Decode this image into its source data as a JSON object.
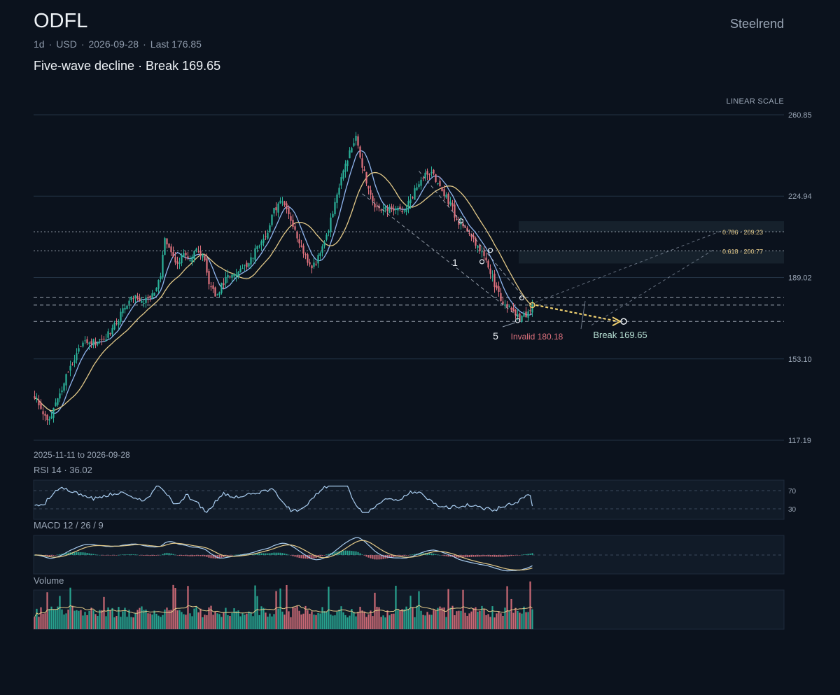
{
  "header": {
    "ticker": "ODFL",
    "brand": "Steelrend",
    "interval": "1d",
    "currency": "USD",
    "date": "2026-09-28",
    "last_label": "Last 176.85",
    "headline": "Five-wave decline · Break 169.65",
    "scale": "LINEAR SCALE",
    "range": "2025-11-11 to 2026-09-28"
  },
  "panes": {
    "rsi_label": "RSI 14 · 36.02",
    "macd_label": "MACD 12 / 26 / 9",
    "volume_label": "Volume"
  },
  "colors": {
    "background": "#0b121d",
    "up": "#2bb39a",
    "down": "#e0727e",
    "ma_fast": "#8fb5ee",
    "ma_slow": "#e3c988",
    "rsi": "#a9cdf0",
    "macd_signal": "#e3c988",
    "projection": "#f0d070"
  },
  "chart_data": {
    "type": "candlestick",
    "y_axis": {
      "min": 117.19,
      "max": 260.85,
      "ticks": [
        "260.85",
        "224.94",
        "189.02",
        "153.10",
        "117.19"
      ]
    },
    "anchors": [
      [
        0,
        137
      ],
      [
        3,
        132
      ],
      [
        6,
        126
      ],
      [
        9,
        130
      ],
      [
        12,
        138
      ],
      [
        15,
        145
      ],
      [
        18,
        152
      ],
      [
        21,
        157
      ],
      [
        24,
        160
      ],
      [
        27,
        160
      ],
      [
        30,
        161
      ],
      [
        33,
        162
      ],
      [
        36,
        165
      ],
      [
        40,
        171
      ],
      [
        44,
        177
      ],
      [
        48,
        181
      ],
      [
        52,
        179
      ],
      [
        56,
        181
      ],
      [
        60,
        190
      ],
      [
        62,
        205
      ],
      [
        65,
        201
      ],
      [
        68,
        194
      ],
      [
        71,
        199
      ],
      [
        74,
        197
      ],
      [
        77,
        202
      ],
      [
        80,
        199
      ],
      [
        83,
        187
      ],
      [
        86,
        181
      ],
      [
        90,
        187
      ],
      [
        94,
        191
      ],
      [
        98,
        193
      ],
      [
        102,
        195
      ],
      [
        106,
        203
      ],
      [
        110,
        207
      ],
      [
        114,
        219
      ],
      [
        118,
        224
      ],
      [
        121,
        216
      ],
      [
        124,
        210
      ],
      [
        127,
        202
      ],
      [
        130,
        196
      ],
      [
        133,
        194
      ],
      [
        136,
        201
      ],
      [
        139,
        208
      ],
      [
        142,
        217
      ],
      [
        146,
        232
      ],
      [
        150,
        245
      ],
      [
        153,
        252
      ],
      [
        156,
        238
      ],
      [
        159,
        228
      ],
      [
        162,
        221
      ],
      [
        165,
        220
      ],
      [
        168,
        219
      ],
      [
        171,
        220
      ],
      [
        174,
        218
      ],
      [
        177,
        220
      ],
      [
        180,
        225
      ],
      [
        183,
        231
      ],
      [
        186,
        234
      ],
      [
        189,
        235
      ],
      [
        192,
        231
      ],
      [
        195,
        226
      ],
      [
        198,
        221
      ],
      [
        201,
        215
      ],
      [
        204,
        211
      ],
      [
        207,
        207
      ],
      [
        210,
        204
      ],
      [
        213,
        199
      ],
      [
        216,
        195
      ],
      [
        219,
        186
      ],
      [
        222,
        180
      ],
      [
        225,
        177
      ],
      [
        228,
        174
      ],
      [
        231,
        171
      ],
      [
        234,
        173
      ],
      [
        237,
        176.85
      ]
    ],
    "levels": [
      {
        "value": 209.23,
        "label": "0.786 · 209.23",
        "style": "dotted"
      },
      {
        "value": 200.77,
        "label": "0.618 · 200.77",
        "style": "dotted"
      },
      {
        "value": 180.18,
        "style": "dashed"
      },
      {
        "value": 176.85,
        "style": "dashed"
      },
      {
        "value": 169.65,
        "style": "dashed"
      }
    ],
    "annotations": {
      "wave_1": "1",
      "wave_5": "5",
      "invalid": "Invalid 180.18",
      "break_label": "Break 169.65",
      "break_value": 169.65,
      "fib_786": "0.786 · 209.23",
      "fib_618": "0.618 · 200.77"
    },
    "rsi": {
      "period": 14,
      "last": 36.02,
      "levels": [
        "70",
        "30"
      ]
    },
    "macd": {
      "fast": 12,
      "slow": 26,
      "signal": 9
    }
  }
}
